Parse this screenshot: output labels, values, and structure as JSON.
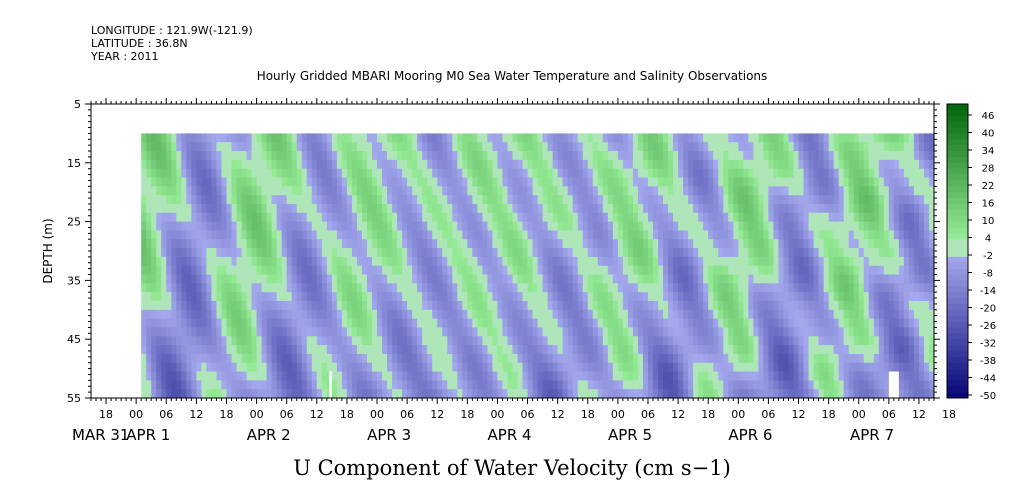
{
  "header": {
    "longitude": "LONGITUDE : 121.9W(-121.9)",
    "latitude": "LATITUDE : 36.8N",
    "year": "YEAR : 2011"
  },
  "chart_data": {
    "type": "heatmap",
    "title": "Hourly Gridded MBARI Mooring M0 Sea Water Temperature and Salinity Observations",
    "xlabel": "U Component of Water Velocity (cm s−1)",
    "ylabel": "DEPTH (m)",
    "ylim": [
      5,
      55
    ],
    "y_inverted": true,
    "y_ticks": [
      5,
      15,
      25,
      35,
      45,
      55
    ],
    "x_range_hours": [
      -9,
      159
    ],
    "x_ticks": [
      "18",
      "00",
      "06",
      "12",
      "18",
      "00",
      "06",
      "12",
      "18",
      "00",
      "06",
      "12",
      "18",
      "00",
      "06",
      "12",
      "18",
      "00",
      "06",
      "12",
      "18",
      "00",
      "06",
      "12",
      "18",
      "00",
      "06",
      "12",
      "18"
    ],
    "day_labels": [
      "MAR 31",
      "APR  1",
      "APR  2",
      "APR  3",
      "APR  4",
      "APR  5",
      "APR  6",
      "APR  7"
    ],
    "data_extent": {
      "depth_top": 10,
      "depth_bottom": 55,
      "start_hour": 1,
      "end_hour": 159
    },
    "colorbar": {
      "labels": [
        "46",
        "40",
        "34",
        "28",
        "22",
        "16",
        "10",
        "4",
        "-2",
        "-8",
        "-14",
        "-20",
        "-26",
        "-32",
        "-38",
        "-44",
        "-50"
      ],
      "vmin": -50,
      "vmax": 49
    },
    "grid": false
  }
}
